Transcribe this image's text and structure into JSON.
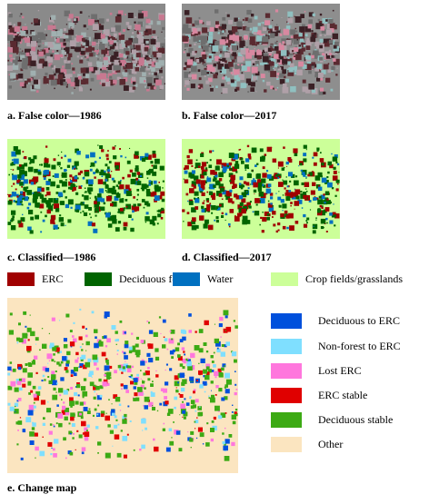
{
  "panels": [
    {
      "caption": "a. False color—1986"
    },
    {
      "caption": "b. False color—2017"
    },
    {
      "caption": "c. Classified—1986"
    },
    {
      "caption": "d. Classified—2017"
    },
    {
      "caption": "e. Change map"
    }
  ],
  "class_legend": [
    {
      "label": "ERC",
      "color": "#a00000"
    },
    {
      "label": "Deciduous forests",
      "color": "#006400"
    },
    {
      "label": "Water",
      "color": "#0070c0"
    },
    {
      "label": "Crop fields/grasslands",
      "color": "#ccff99"
    }
  ],
  "change_legend": [
    {
      "label": "Deciduous to ERC",
      "color": "#0050dc"
    },
    {
      "label": "Non-forest to ERC",
      "color": "#7fdfff"
    },
    {
      "label": "Lost ERC",
      "color": "#ff77dd"
    },
    {
      "label": "ERC stable",
      "color": "#e00000"
    },
    {
      "label": "Deciduous stable",
      "color": "#3caa14"
    },
    {
      "label": "Other",
      "color": "#fbe5c0"
    }
  ]
}
